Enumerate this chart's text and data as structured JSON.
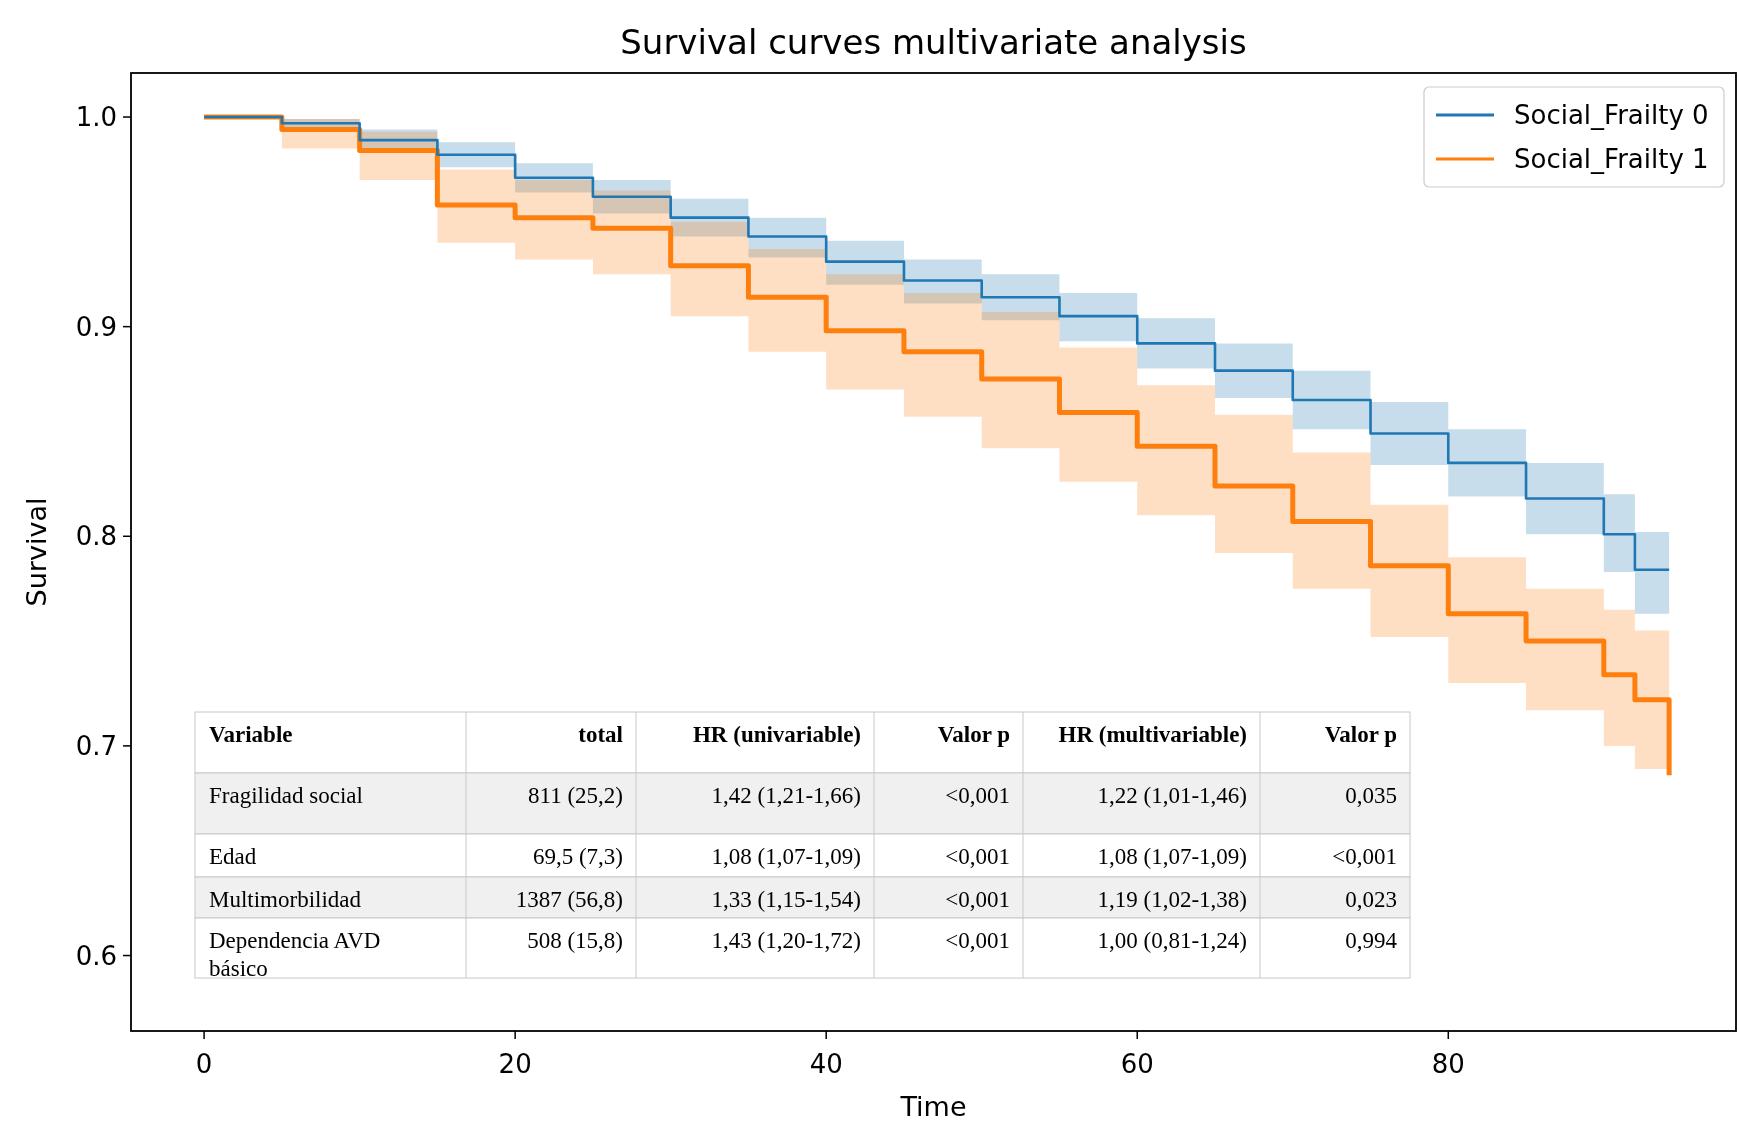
{
  "chart_data": {
    "type": "step",
    "title": "Survival curves multivariate analysis",
    "xlabel": "Time",
    "ylabel": "Survival",
    "x": [
      0,
      5,
      10,
      15,
      20,
      25,
      30,
      35,
      40,
      45,
      50,
      55,
      60,
      65,
      70,
      75,
      80,
      85,
      90,
      92,
      94.2
    ],
    "xlim": [
      -4.7,
      98.5
    ],
    "xticks": [
      0,
      20,
      40,
      60,
      80
    ],
    "ylim": [
      0.564,
      1.021
    ],
    "yticks": [
      0.6,
      0.7,
      0.8,
      0.9,
      {
        "value": 1,
        "label": "1.0"
      }
    ],
    "legend": "top right",
    "series": [
      {
        "name": "Social_Frailty 0",
        "color": "#1f77b4",
        "values": [
          1.0,
          0.997,
          0.989,
          0.982,
          0.971,
          0.962,
          0.952,
          0.943,
          0.931,
          0.922,
          0.914,
          0.905,
          0.892,
          0.879,
          0.865,
          0.849,
          0.835,
          0.818,
          0.801,
          0.784,
          0.784
        ],
        "upper": [
          1.0,
          0.999,
          0.994,
          0.988,
          0.978,
          0.97,
          0.961,
          0.952,
          0.941,
          0.932,
          0.925,
          0.916,
          0.904,
          0.892,
          0.879,
          0.864,
          0.851,
          0.835,
          0.82,
          0.802,
          0.802
        ],
        "lower": [
          1.0,
          0.994,
          0.984,
          0.976,
          0.964,
          0.954,
          0.943,
          0.933,
          0.92,
          0.911,
          0.903,
          0.893,
          0.88,
          0.866,
          0.851,
          0.834,
          0.819,
          0.801,
          0.783,
          0.763,
          0.763
        ]
      },
      {
        "name": "Social_Frailty 1",
        "color": "#ff7f0e",
        "values": [
          1.0,
          0.994,
          0.984,
          0.958,
          0.952,
          0.947,
          0.929,
          0.914,
          0.898,
          0.888,
          0.875,
          0.859,
          0.843,
          0.824,
          0.807,
          0.786,
          0.763,
          0.75,
          0.734,
          0.722,
          0.686
        ],
        "upper": [
          1.0,
          0.999,
          0.993,
          0.975,
          0.97,
          0.965,
          0.95,
          0.937,
          0.925,
          0.916,
          0.907,
          0.89,
          0.872,
          0.858,
          0.84,
          0.815,
          0.79,
          0.775,
          0.765,
          0.755,
          0.755
        ],
        "lower": [
          1.0,
          0.985,
          0.97,
          0.94,
          0.932,
          0.925,
          0.905,
          0.888,
          0.87,
          0.857,
          0.842,
          0.826,
          0.81,
          0.792,
          0.775,
          0.752,
          0.73,
          0.717,
          0.7,
          0.689,
          0.686
        ]
      }
    ],
    "annotations": [
      "Variable",
      "total",
      "HR (univariable)",
      "Valor p",
      "HR (multivariable)",
      "Valor p",
      "Fragilidad social",
      "811 (25,2)",
      "1,42 (1,21-1,66)",
      "<0,001",
      "1,22 (1,01-1,46)",
      "0,035",
      "Edad",
      "69,5 (7,3)",
      "1,08 (1,07-1,09)",
      "<0,001",
      "1,08 (1,07-1,09)",
      "<0,001",
      "Multimorbilidad",
      "1387 (56,8)",
      "1,33 (1,15-1,54)",
      "<0,001",
      "1,19 (1,02-1,38)",
      "0,023",
      "Dependencia AVD básico",
      "508 (15,8)",
      "1,43 (1,20-1,72)",
      "<0,001",
      "1,00 (0,81-1,24)",
      "0,994"
    ]
  }
}
